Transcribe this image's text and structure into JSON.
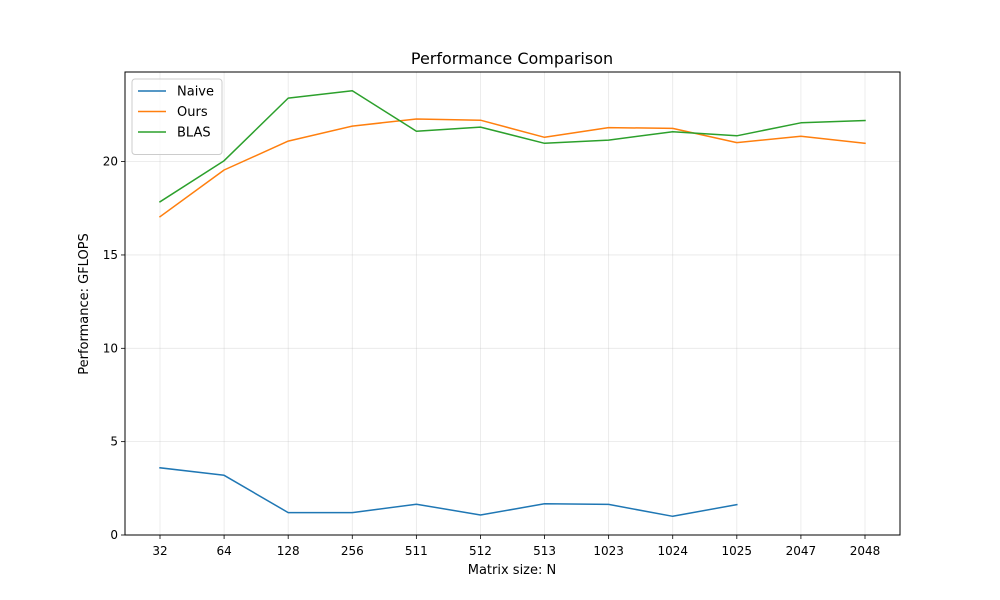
{
  "chart_data": {
    "type": "line",
    "title": "Performance Comparison",
    "xlabel": "Matrix size: N",
    "ylabel": "Performance: GFLOPS",
    "categories": [
      "32",
      "64",
      "128",
      "256",
      "511",
      "512",
      "513",
      "1023",
      "1024",
      "1025",
      "2047",
      "2048"
    ],
    "ylim": [
      0,
      24.8
    ],
    "yticks": [
      0,
      5,
      10,
      15,
      20
    ],
    "grid": true,
    "legend": "top-left",
    "series": [
      {
        "name": "Naive",
        "color": "#1f77b4",
        "values": [
          3.6,
          3.2,
          1.2,
          1.2,
          1.65,
          1.07,
          1.67,
          1.64,
          1.0,
          1.63,
          null,
          null
        ]
      },
      {
        "name": "Ours",
        "color": "#ff7f0e",
        "values": [
          17.05,
          19.55,
          21.1,
          21.9,
          22.28,
          22.22,
          21.3,
          21.82,
          21.78,
          21.02,
          21.36,
          20.98
        ]
      },
      {
        "name": "BLAS",
        "color": "#2ca02c",
        "values": [
          17.85,
          20.05,
          23.4,
          23.8,
          21.63,
          21.85,
          20.98,
          21.15,
          21.6,
          21.38,
          22.08,
          22.2
        ]
      }
    ]
  }
}
